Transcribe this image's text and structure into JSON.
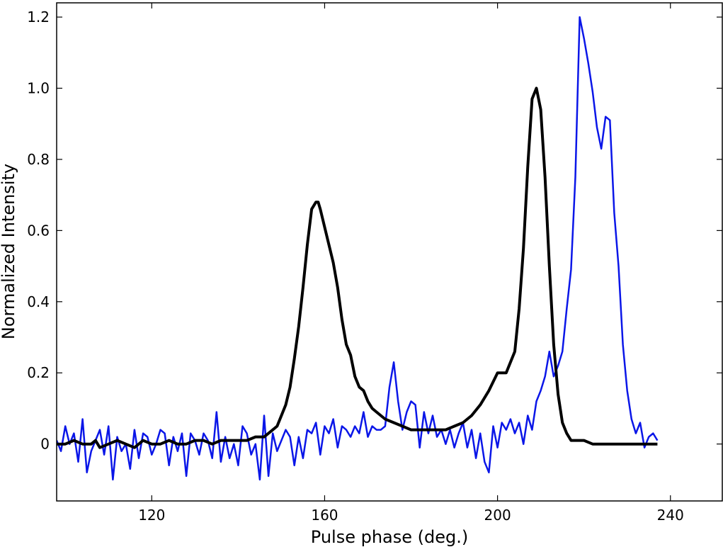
{
  "chart_data": {
    "type": "line",
    "title": "",
    "xlabel": "Pulse phase (deg.)",
    "ylabel": "Normalized Intensity",
    "xlim": [
      98,
      252
    ],
    "ylim": [
      -0.16,
      1.24
    ],
    "x_ticks": [
      120,
      160,
      200,
      240
    ],
    "x_tick_labels": [
      "120",
      "160",
      "200",
      "240"
    ],
    "y_ticks": [
      0,
      0.2,
      0.4,
      0.6,
      0.8,
      1.0,
      1.2
    ],
    "y_tick_labels": [
      "0",
      "0.2",
      "0.4",
      "0.6",
      "0.8",
      "1.0",
      "1.2"
    ],
    "grid": false,
    "legend": "none",
    "series": [
      {
        "color": "#0a16e8",
        "points": [
          [
            98,
            0.01
          ],
          [
            99,
            -0.02
          ],
          [
            100,
            0.05
          ],
          [
            101,
            0.0
          ],
          [
            102,
            0.03
          ],
          [
            103,
            -0.05
          ],
          [
            104,
            0.07
          ],
          [
            105,
            -0.08
          ],
          [
            106,
            -0.02
          ],
          [
            107,
            0.01
          ],
          [
            108,
            0.04
          ],
          [
            109,
            -0.03
          ],
          [
            110,
            0.05
          ],
          [
            111,
            -0.1
          ],
          [
            112,
            0.02
          ],
          [
            113,
            -0.02
          ],
          [
            114,
            0.0
          ],
          [
            115,
            -0.07
          ],
          [
            116,
            0.04
          ],
          [
            117,
            -0.04
          ],
          [
            118,
            0.03
          ],
          [
            119,
            0.02
          ],
          [
            120,
            -0.03
          ],
          [
            121,
            0.0
          ],
          [
            122,
            0.04
          ],
          [
            123,
            0.03
          ],
          [
            124,
            -0.06
          ],
          [
            125,
            0.02
          ],
          [
            126,
            -0.02
          ],
          [
            127,
            0.03
          ],
          [
            128,
            -0.09
          ],
          [
            129,
            0.03
          ],
          [
            130,
            0.01
          ],
          [
            131,
            -0.03
          ],
          [
            132,
            0.03
          ],
          [
            133,
            0.01
          ],
          [
            134,
            -0.04
          ],
          [
            135,
            0.09
          ],
          [
            136,
            -0.05
          ],
          [
            137,
            0.02
          ],
          [
            138,
            -0.04
          ],
          [
            139,
            0.0
          ],
          [
            140,
            -0.06
          ],
          [
            141,
            0.05
          ],
          [
            142,
            0.03
          ],
          [
            143,
            -0.03
          ],
          [
            144,
            0.0
          ],
          [
            145,
            -0.1
          ],
          [
            146,
            0.08
          ],
          [
            147,
            -0.09
          ],
          [
            148,
            0.03
          ],
          [
            149,
            -0.02
          ],
          [
            150,
            0.01
          ],
          [
            151,
            0.04
          ],
          [
            152,
            0.02
          ],
          [
            153,
            -0.06
          ],
          [
            154,
            0.02
          ],
          [
            155,
            -0.04
          ],
          [
            156,
            0.04
          ],
          [
            157,
            0.03
          ],
          [
            158,
            0.06
          ],
          [
            159,
            -0.03
          ],
          [
            160,
            0.05
          ],
          [
            161,
            0.03
          ],
          [
            162,
            0.07
          ],
          [
            163,
            -0.01
          ],
          [
            164,
            0.05
          ],
          [
            165,
            0.04
          ],
          [
            166,
            0.02
          ],
          [
            167,
            0.05
          ],
          [
            168,
            0.03
          ],
          [
            169,
            0.09
          ],
          [
            170,
            0.02
          ],
          [
            171,
            0.05
          ],
          [
            172,
            0.04
          ],
          [
            173,
            0.04
          ],
          [
            174,
            0.05
          ],
          [
            175,
            0.16
          ],
          [
            176,
            0.23
          ],
          [
            177,
            0.12
          ],
          [
            178,
            0.04
          ],
          [
            179,
            0.09
          ],
          [
            180,
            0.12
          ],
          [
            181,
            0.11
          ],
          [
            182,
            -0.01
          ],
          [
            183,
            0.09
          ],
          [
            184,
            0.03
          ],
          [
            185,
            0.08
          ],
          [
            186,
            0.02
          ],
          [
            187,
            0.04
          ],
          [
            188,
            0.0
          ],
          [
            189,
            0.04
          ],
          [
            190,
            -0.01
          ],
          [
            191,
            0.03
          ],
          [
            192,
            0.06
          ],
          [
            193,
            -0.01
          ],
          [
            194,
            0.04
          ],
          [
            195,
            -0.04
          ],
          [
            196,
            0.03
          ],
          [
            197,
            -0.05
          ],
          [
            198,
            -0.08
          ],
          [
            199,
            0.05
          ],
          [
            200,
            -0.01
          ],
          [
            201,
            0.06
          ],
          [
            202,
            0.04
          ],
          [
            203,
            0.07
          ],
          [
            204,
            0.03
          ],
          [
            205,
            0.06
          ],
          [
            206,
            0.0
          ],
          [
            207,
            0.08
          ],
          [
            208,
            0.04
          ],
          [
            209,
            0.12
          ],
          [
            210,
            0.15
          ],
          [
            211,
            0.19
          ],
          [
            212,
            0.26
          ],
          [
            213,
            0.19
          ],
          [
            214,
            0.22
          ],
          [
            215,
            0.26
          ],
          [
            216,
            0.38
          ],
          [
            217,
            0.49
          ],
          [
            218,
            0.75
          ],
          [
            219,
            1.2
          ],
          [
            220,
            1.14
          ],
          [
            221,
            1.07
          ],
          [
            222,
            0.99
          ],
          [
            223,
            0.89
          ],
          [
            224,
            0.83
          ],
          [
            225,
            0.92
          ],
          [
            226,
            0.91
          ],
          [
            227,
            0.65
          ],
          [
            228,
            0.5
          ],
          [
            229,
            0.28
          ],
          [
            230,
            0.15
          ],
          [
            231,
            0.07
          ],
          [
            232,
            0.03
          ],
          [
            233,
            0.06
          ],
          [
            234,
            -0.01
          ],
          [
            235,
            0.02
          ],
          [
            236,
            0.03
          ],
          [
            237,
            0.01
          ]
        ]
      },
      {
        "color": "#000000",
        "points": [
          [
            98,
            0.0
          ],
          [
            100,
            0.0
          ],
          [
            102,
            0.01
          ],
          [
            104,
            0.0
          ],
          [
            106,
            0.0
          ],
          [
            107,
            0.01
          ],
          [
            108,
            -0.01
          ],
          [
            110,
            0.0
          ],
          [
            112,
            0.01
          ],
          [
            114,
            0.0
          ],
          [
            116,
            -0.01
          ],
          [
            118,
            0.01
          ],
          [
            120,
            0.0
          ],
          [
            122,
            0.0
          ],
          [
            124,
            0.01
          ],
          [
            126,
            0.0
          ],
          [
            128,
            0.0
          ],
          [
            130,
            0.01
          ],
          [
            132,
            0.01
          ],
          [
            134,
            0.0
          ],
          [
            136,
            0.01
          ],
          [
            138,
            0.01
          ],
          [
            140,
            0.01
          ],
          [
            142,
            0.01
          ],
          [
            144,
            0.02
          ],
          [
            146,
            0.02
          ],
          [
            147,
            0.03
          ],
          [
            148,
            0.04
          ],
          [
            149,
            0.05
          ],
          [
            150,
            0.08
          ],
          [
            151,
            0.11
          ],
          [
            152,
            0.16
          ],
          [
            153,
            0.24
          ],
          [
            154,
            0.33
          ],
          [
            155,
            0.44
          ],
          [
            156,
            0.56
          ],
          [
            157,
            0.66
          ],
          [
            158,
            0.68
          ],
          [
            158.5,
            0.68
          ],
          [
            159,
            0.66
          ],
          [
            160,
            0.61
          ],
          [
            161,
            0.56
          ],
          [
            162,
            0.51
          ],
          [
            163,
            0.44
          ],
          [
            164,
            0.35
          ],
          [
            165,
            0.28
          ],
          [
            166,
            0.25
          ],
          [
            167,
            0.19
          ],
          [
            168,
            0.16
          ],
          [
            169,
            0.15
          ],
          [
            170,
            0.12
          ],
          [
            171,
            0.1
          ],
          [
            172,
            0.09
          ],
          [
            173,
            0.08
          ],
          [
            174,
            0.07
          ],
          [
            176,
            0.06
          ],
          [
            178,
            0.05
          ],
          [
            180,
            0.04
          ],
          [
            182,
            0.04
          ],
          [
            184,
            0.04
          ],
          [
            186,
            0.04
          ],
          [
            188,
            0.04
          ],
          [
            190,
            0.05
          ],
          [
            192,
            0.06
          ],
          [
            194,
            0.08
          ],
          [
            196,
            0.11
          ],
          [
            198,
            0.15
          ],
          [
            200,
            0.2
          ],
          [
            202,
            0.2
          ],
          [
            204,
            0.26
          ],
          [
            205,
            0.38
          ],
          [
            206,
            0.55
          ],
          [
            207,
            0.78
          ],
          [
            208,
            0.97
          ],
          [
            209,
            1.0
          ],
          [
            210,
            0.94
          ],
          [
            211,
            0.75
          ],
          [
            212,
            0.5
          ],
          [
            213,
            0.28
          ],
          [
            214,
            0.14
          ],
          [
            215,
            0.06
          ],
          [
            216,
            0.03
          ],
          [
            217,
            0.01
          ],
          [
            218,
            0.01
          ],
          [
            220,
            0.01
          ],
          [
            222,
            0.0
          ],
          [
            224,
            0.0
          ],
          [
            226,
            0.0
          ],
          [
            228,
            0.0
          ],
          [
            230,
            0.0
          ],
          [
            232,
            0.0
          ],
          [
            234,
            0.0
          ],
          [
            236,
            0.0
          ],
          [
            237,
            0.0
          ]
        ]
      }
    ]
  }
}
